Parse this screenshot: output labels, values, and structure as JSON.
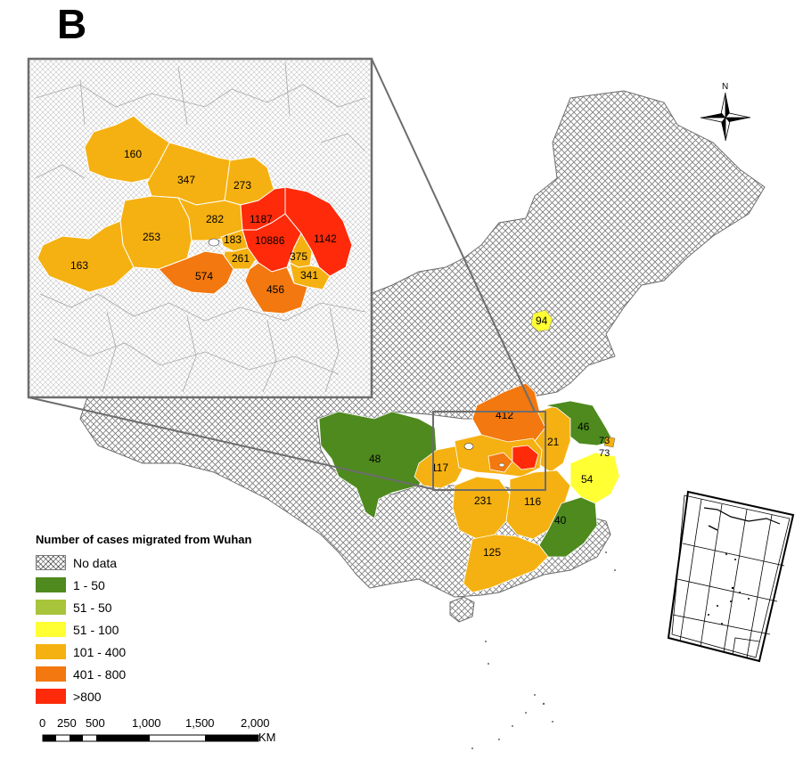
{
  "panel_label": "B",
  "north_label": "N",
  "colors": {
    "no_data_stroke": "#8a8a8a",
    "dark_green": "#4e8a1e",
    "light_green": "#a8c43a",
    "yellow": "#ffff33",
    "light_orange": "#f5b111",
    "orange": "#f2780f",
    "red": "#ff2a0a"
  },
  "legend": {
    "title": "Number of cases migrated from Wuhan",
    "items": [
      {
        "label": "No data",
        "color": "hatch"
      },
      {
        "label": "1 - 50",
        "color": "#4e8a1e"
      },
      {
        "label": "51 - 50",
        "color": "#a8c43a"
      },
      {
        "label": "51 - 100",
        "color": "#ffff33"
      },
      {
        "label": "101 - 400",
        "color": "#f5b111"
      },
      {
        "label": "401 - 800",
        "color": "#f2780f"
      },
      {
        "label": ">800",
        "color": "#ff2a0a"
      }
    ]
  },
  "scale_bar": {
    "ticks": [
      "0",
      "250",
      "500",
      "1,000",
      "1,500",
      "2,000"
    ],
    "unit": "KM"
  },
  "inset_labels": {
    "c160": "160",
    "c347": "347",
    "c273": "273",
    "c282": "282",
    "c1187": "1187",
    "c1142": "1142",
    "c253": "253",
    "c183": "183",
    "c10886": "10886",
    "c375": "375",
    "c261": "261",
    "c163": "163",
    "c574": "574",
    "c341": "341",
    "c456": "456"
  },
  "province_labels": {
    "beijing": "94",
    "henan": "412",
    "jiangsu": "46",
    "shanghai": "73",
    "shanghai2": "73",
    "anhui": "21",
    "sichuan": "48",
    "chongqing": "117",
    "zhejiang": "54",
    "hunan": "231",
    "jiangxi": "116",
    "fujian": "40",
    "guangdong": "125"
  }
}
